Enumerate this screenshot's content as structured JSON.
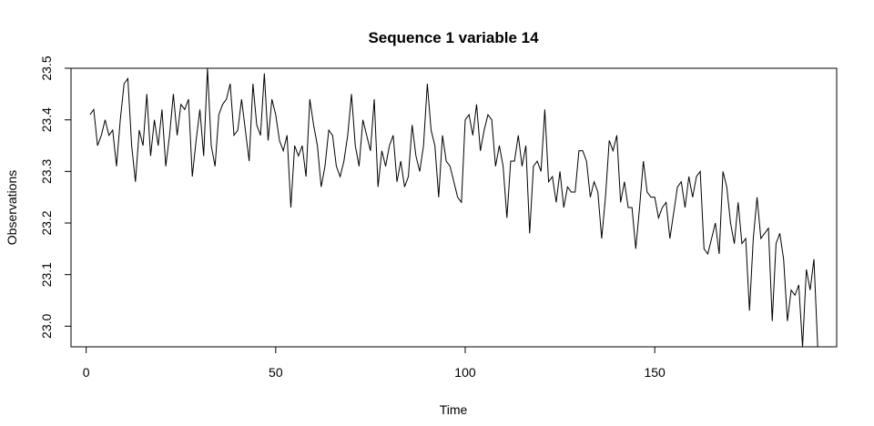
{
  "chart_data": {
    "type": "line",
    "title": "Sequence  1  variable  14",
    "xlabel": "Time",
    "ylabel": "Observations",
    "xlim": [
      -4,
      198
    ],
    "ylim": [
      22.96,
      23.5
    ],
    "x_ticks": [
      0,
      50,
      100,
      150
    ],
    "y_ticks": [
      23.0,
      23.1,
      23.2,
      23.3,
      23.4,
      23.5
    ],
    "x_tick_labels": [
      "0",
      "50",
      "100",
      "150"
    ],
    "y_tick_labels": [
      "23.0",
      "23.1",
      "23.2",
      "23.3",
      "23.4",
      "23.5"
    ],
    "grid": false,
    "line_color": "#000000",
    "x_start": 1,
    "values": [
      23.41,
      23.42,
      23.35,
      23.37,
      23.4,
      23.37,
      23.38,
      23.31,
      23.4,
      23.47,
      23.48,
      23.35,
      23.28,
      23.38,
      23.35,
      23.45,
      23.33,
      23.4,
      23.35,
      23.42,
      23.31,
      23.37,
      23.45,
      23.37,
      23.43,
      23.42,
      23.44,
      23.29,
      23.36,
      23.42,
      23.33,
      23.5,
      23.35,
      23.31,
      23.41,
      23.43,
      23.44,
      23.47,
      23.37,
      23.38,
      23.44,
      23.38,
      23.32,
      23.47,
      23.39,
      23.37,
      23.49,
      23.36,
      23.44,
      23.41,
      23.36,
      23.34,
      23.37,
      23.23,
      23.35,
      23.33,
      23.35,
      23.29,
      23.44,
      23.39,
      23.35,
      23.27,
      23.31,
      23.38,
      23.37,
      23.31,
      23.29,
      23.32,
      23.37,
      23.45,
      23.35,
      23.31,
      23.4,
      23.37,
      23.34,
      23.44,
      23.27,
      23.34,
      23.31,
      23.35,
      23.37,
      23.28,
      23.32,
      23.27,
      23.29,
      23.39,
      23.33,
      23.3,
      23.35,
      23.47,
      23.38,
      23.35,
      23.25,
      23.37,
      23.32,
      23.31,
      23.28,
      23.25,
      23.24,
      23.4,
      23.41,
      23.37,
      23.43,
      23.34,
      23.38,
      23.41,
      23.4,
      23.31,
      23.35,
      23.31,
      23.21,
      23.32,
      23.32,
      23.37,
      23.31,
      23.35,
      23.18,
      23.31,
      23.32,
      23.3,
      23.42,
      23.28,
      23.29,
      23.24,
      23.3,
      23.23,
      23.27,
      23.26,
      23.26,
      23.34,
      23.34,
      23.32,
      23.25,
      23.28,
      23.26,
      23.17,
      23.25,
      23.36,
      23.34,
      23.37,
      23.24,
      23.28,
      23.23,
      23.23,
      23.15,
      23.23,
      23.32,
      23.26,
      23.25,
      23.25,
      23.21,
      23.23,
      23.24,
      23.17,
      23.22,
      23.27,
      23.28,
      23.23,
      23.29,
      23.25,
      23.29,
      23.3,
      23.15,
      23.14,
      23.17,
      23.2,
      23.14,
      23.3,
      23.27,
      23.2,
      23.16,
      23.24,
      23.16,
      23.17,
      23.03,
      23.17,
      23.25,
      23.17,
      23.18,
      23.19,
      23.01,
      23.16,
      23.18,
      23.13,
      23.01,
      23.07,
      23.06,
      23.08,
      22.96,
      23.11,
      23.07,
      23.13,
      22.96
    ]
  }
}
